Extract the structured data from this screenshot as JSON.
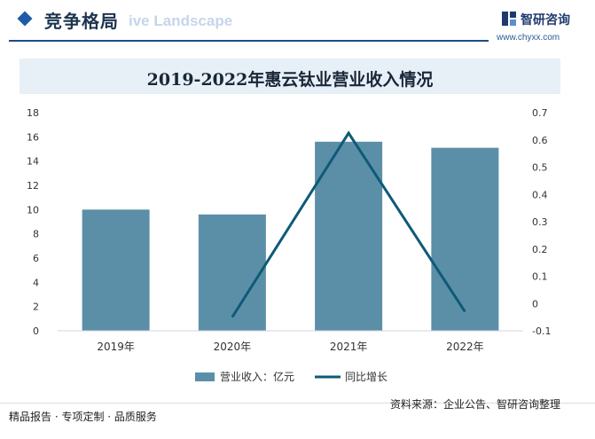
{
  "header": {
    "section_title": "竞争格局",
    "section_subtitle": "ive Landscape",
    "brand_name": "智研咨询",
    "brand_url": "www.chyxx.com"
  },
  "chart_data": {
    "type": "bar",
    "title": "2019-2022年惠云钛业营业收入情况",
    "categories": [
      "2019年",
      "2020年",
      "2021年",
      "2022年"
    ],
    "series": [
      {
        "name": "营业收入：亿元",
        "type": "bar",
        "axis": "left",
        "values": [
          10.0,
          9.6,
          15.6,
          15.1
        ]
      },
      {
        "name": "同比增长",
        "type": "line",
        "axis": "right",
        "values": [
          null,
          -0.05,
          0.625,
          -0.03
        ]
      }
    ],
    "y_left": {
      "min": 0,
      "max": 18,
      "ticks": [
        "0",
        "2",
        "4",
        "6",
        "8",
        "10",
        "12",
        "14",
        "16",
        "18"
      ]
    },
    "y_right": {
      "min": -0.1,
      "max": 0.7,
      "ticks": [
        "-0.1",
        "0",
        "0.1",
        "0.2",
        "0.3",
        "0.4",
        "0.5",
        "0.6",
        "0.7"
      ]
    },
    "grid": false,
    "legend_position": "bottom",
    "colors": {
      "bar": "#5b8fa8",
      "line": "#0e5a77"
    }
  },
  "footer": {
    "left_text": "精品报告 · 专项定制 · 品质服务",
    "source_text": "资料来源：企业公告、智研咨询整理"
  }
}
